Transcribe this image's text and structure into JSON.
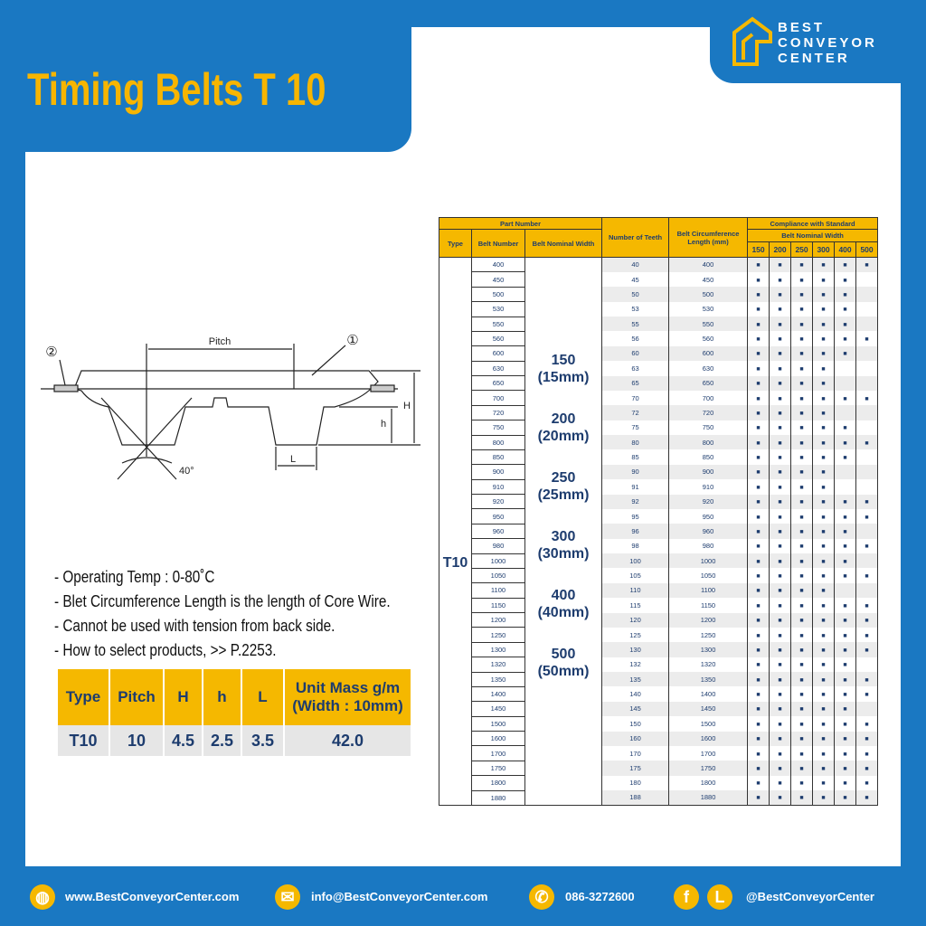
{
  "header": {
    "title": "Timing Belts T 10"
  },
  "logo": {
    "lines": [
      "BEST",
      "CONVEYOR",
      "CENTER"
    ]
  },
  "diagram": {
    "pitch": "Pitch",
    "marker_1": "①",
    "marker_2": "②",
    "H": "H",
    "h": "h",
    "L": "L",
    "angle": "40°"
  },
  "notes": [
    "- Operating Temp : 0-80˚C",
    "- Blet Circumference Length is the length of Core Wire.",
    "- Cannot be used with tension from back side.",
    "- How to select products, >> P.2253."
  ],
  "spec_table": {
    "headers": [
      "Type",
      "Pitch",
      "H",
      "h",
      "L"
    ],
    "unit_mass_header": [
      "Unit Mass g/m",
      "(Width : 10mm)"
    ],
    "rows": [
      [
        "T10",
        "10",
        "4.5",
        "2.5",
        "3.5",
        "42.0"
      ]
    ]
  },
  "part_table": {
    "part_number": "Part Number",
    "compliance": "Compliance with Standard",
    "width_group": "Belt Nominal Width",
    "type_header": "Type",
    "belt_number_header": "Belt Number",
    "nominal_width_header": "Belt Nominal Width",
    "teeth_header": "Number of Teeth",
    "length_header": [
      "Belt Circumference",
      "Length (mm)"
    ],
    "widths": [
      "150",
      "200",
      "250",
      "300",
      "400",
      "500"
    ],
    "type": "T10",
    "nominal_widths": [
      {
        "width": "150",
        "mm": "(15mm)"
      },
      {
        "width": "200",
        "mm": "(20mm)"
      },
      {
        "width": "250",
        "mm": "(25mm)"
      },
      {
        "width": "300",
        "mm": "(30mm)"
      },
      {
        "width": "400",
        "mm": "(40mm)"
      },
      {
        "width": "500",
        "mm": "(50mm)"
      }
    ],
    "rows": [
      {
        "belt_number": "400",
        "teeth": "40",
        "length": "400",
        "marks": [
          "■",
          "■",
          "■",
          "■",
          "■",
          "■"
        ]
      },
      {
        "belt_number": "450",
        "teeth": "45",
        "length": "450",
        "marks": [
          "■",
          "■",
          "■",
          "■",
          "■",
          null
        ]
      },
      {
        "belt_number": "500",
        "teeth": "50",
        "length": "500",
        "marks": [
          "■",
          "■",
          "■",
          "■",
          "■",
          null
        ]
      },
      {
        "belt_number": "530",
        "teeth": "53",
        "length": "530",
        "marks": [
          "■",
          "■",
          "■",
          "■",
          "■",
          null
        ]
      },
      {
        "belt_number": "550",
        "teeth": "55",
        "length": "550",
        "marks": [
          "■",
          "■",
          "■",
          "■",
          "■",
          null
        ]
      },
      {
        "belt_number": "560",
        "teeth": "56",
        "length": "560",
        "marks": [
          "■",
          "■",
          "■",
          "■",
          "■",
          "■"
        ]
      },
      {
        "belt_number": "600",
        "teeth": "60",
        "length": "600",
        "marks": [
          "■",
          "■",
          "■",
          "■",
          "■",
          null
        ]
      },
      {
        "belt_number": "630",
        "teeth": "63",
        "length": "630",
        "marks": [
          "■",
          "■",
          "■",
          "■",
          null,
          null
        ]
      },
      {
        "belt_number": "650",
        "teeth": "65",
        "length": "650",
        "marks": [
          "■",
          "■",
          "■",
          "■",
          null,
          null
        ]
      },
      {
        "belt_number": "700",
        "teeth": "70",
        "length": "700",
        "marks": [
          "■",
          "■",
          "■",
          "■",
          "■",
          "■"
        ]
      },
      {
        "belt_number": "720",
        "teeth": "72",
        "length": "720",
        "marks": [
          "■",
          "■",
          "■",
          "■",
          null,
          null
        ]
      },
      {
        "belt_number": "750",
        "teeth": "75",
        "length": "750",
        "marks": [
          "■",
          "■",
          "■",
          "■",
          "■",
          null
        ]
      },
      {
        "belt_number": "800",
        "teeth": "80",
        "length": "800",
        "marks": [
          "■",
          "■",
          "■",
          "■",
          "■",
          "■"
        ]
      },
      {
        "belt_number": "850",
        "teeth": "85",
        "length": "850",
        "marks": [
          "■",
          "■",
          "■",
          "■",
          "■",
          null
        ]
      },
      {
        "belt_number": "900",
        "teeth": "90",
        "length": "900",
        "marks": [
          "■",
          "■",
          "■",
          "■",
          null,
          null
        ]
      },
      {
        "belt_number": "910",
        "teeth": "91",
        "length": "910",
        "marks": [
          "■",
          "■",
          "■",
          "■",
          null,
          null
        ]
      },
      {
        "belt_number": "920",
        "teeth": "92",
        "length": "920",
        "marks": [
          "■",
          "■",
          "■",
          "■",
          "■",
          "■"
        ]
      },
      {
        "belt_number": "950",
        "teeth": "95",
        "length": "950",
        "marks": [
          "■",
          "■",
          "■",
          "■",
          "■",
          "■"
        ]
      },
      {
        "belt_number": "960",
        "teeth": "96",
        "length": "960",
        "marks": [
          "■",
          "■",
          "■",
          "■",
          "■",
          null
        ]
      },
      {
        "belt_number": "980",
        "teeth": "98",
        "length": "980",
        "marks": [
          "■",
          "■",
          "■",
          "■",
          "■",
          "■"
        ]
      },
      {
        "belt_number": "1000",
        "teeth": "100",
        "length": "1000",
        "marks": [
          "■",
          "■",
          "■",
          "■",
          "■",
          null
        ]
      },
      {
        "belt_number": "1050",
        "teeth": "105",
        "length": "1050",
        "marks": [
          "■",
          "■",
          "■",
          "■",
          "■",
          "■"
        ]
      },
      {
        "belt_number": "1100",
        "teeth": "110",
        "length": "1100",
        "marks": [
          "■",
          "■",
          "■",
          "■",
          null,
          null
        ]
      },
      {
        "belt_number": "1150",
        "teeth": "115",
        "length": "1150",
        "marks": [
          "■",
          "■",
          "■",
          "■",
          "■",
          "■"
        ]
      },
      {
        "belt_number": "1200",
        "teeth": "120",
        "length": "1200",
        "marks": [
          "■",
          "■",
          "■",
          "■",
          "■",
          "■"
        ]
      },
      {
        "belt_number": "1250",
        "teeth": "125",
        "length": "1250",
        "marks": [
          "■",
          "■",
          "■",
          "■",
          "■",
          "■"
        ]
      },
      {
        "belt_number": "1300",
        "teeth": "130",
        "length": "1300",
        "marks": [
          "■",
          "■",
          "■",
          "■",
          "■",
          "■"
        ]
      },
      {
        "belt_number": "1320",
        "teeth": "132",
        "length": "1320",
        "marks": [
          "■",
          "■",
          "■",
          "■",
          "■",
          null
        ]
      },
      {
        "belt_number": "1350",
        "teeth": "135",
        "length": "1350",
        "marks": [
          "■",
          "■",
          "■",
          "■",
          "■",
          "■"
        ]
      },
      {
        "belt_number": "1400",
        "teeth": "140",
        "length": "1400",
        "marks": [
          "■",
          "■",
          "■",
          "■",
          "■",
          "■"
        ]
      },
      {
        "belt_number": "1450",
        "teeth": "145",
        "length": "1450",
        "marks": [
          "■",
          "■",
          "■",
          "■",
          "■",
          null
        ]
      },
      {
        "belt_number": "1500",
        "teeth": "150",
        "length": "1500",
        "marks": [
          "■",
          "■",
          "■",
          "■",
          "■",
          "■"
        ]
      },
      {
        "belt_number": "1600",
        "teeth": "160",
        "length": "1600",
        "marks": [
          "■",
          "■",
          "■",
          "■",
          "■",
          "■"
        ]
      },
      {
        "belt_number": "1700",
        "teeth": "170",
        "length": "1700",
        "marks": [
          "■",
          "■",
          "■",
          "■",
          "■",
          "■"
        ]
      },
      {
        "belt_number": "1750",
        "teeth": "175",
        "length": "1750",
        "marks": [
          "■",
          "■",
          "■",
          "■",
          "■",
          "■"
        ]
      },
      {
        "belt_number": "1800",
        "teeth": "180",
        "length": "1800",
        "marks": [
          "■",
          "■",
          "■",
          "■",
          "■",
          "■"
        ]
      },
      {
        "belt_number": "1880",
        "teeth": "188",
        "length": "1880",
        "marks": [
          "■",
          "■",
          "■",
          "■",
          "■",
          "■"
        ]
      }
    ]
  },
  "footer": {
    "website": "www.BestConveyorCenter.com",
    "email": "info@BestConveyorCenter.com",
    "phone": "086-3272600",
    "facebook_icon": "f",
    "line_icon": "L",
    "social": "@BestConveyorCenter"
  }
}
